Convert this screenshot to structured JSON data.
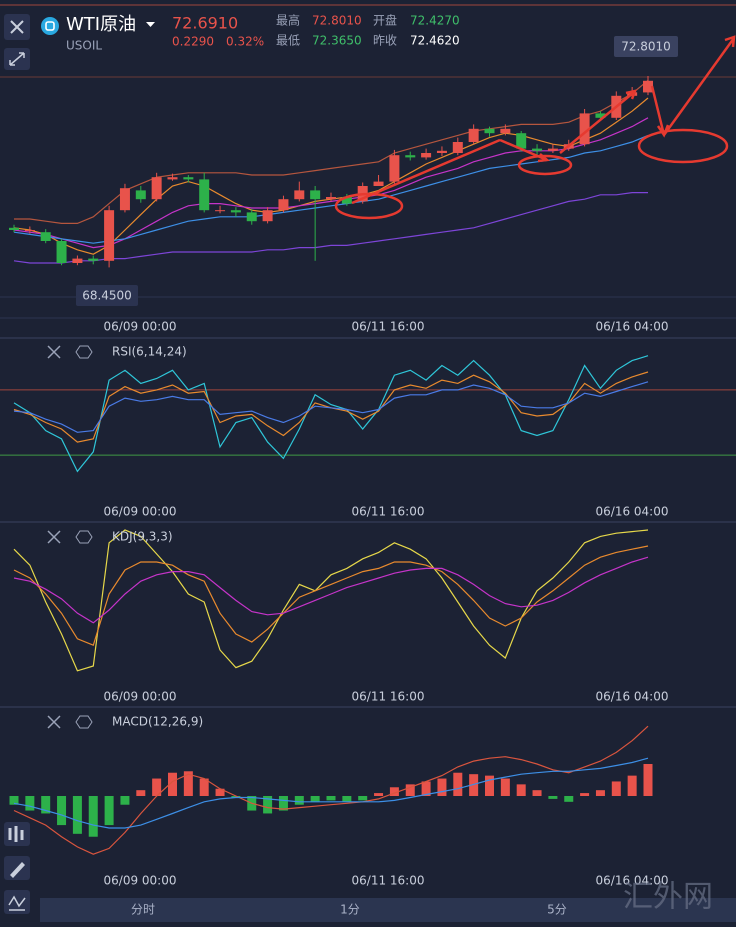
{
  "header": {
    "symbol": "WTI原油",
    "code": "USOIL",
    "price": "72.6910",
    "change": "0.2290",
    "change_pct": "0.32%",
    "high_label": "最高",
    "high": "72.8010",
    "open_label": "开盘",
    "open": "72.4270",
    "low_label": "最低",
    "low": "72.3650",
    "prev_label": "昨收",
    "prev": "72.4620"
  },
  "x_labels": [
    "06/09 00:00",
    "06/11 16:00",
    "06/16 04:00"
  ],
  "chart_data": [
    {
      "type": "candlestick",
      "ylim": [
        67.3,
        74.3
      ],
      "up_color": "#e8534b",
      "down_color": "#2db14a",
      "max_label": "72.8010",
      "min_label": "68.4500",
      "open": [
        69.35,
        69.3,
        69.25,
        69.05,
        68.55,
        68.65,
        68.6,
        69.75,
        70.2,
        70.0,
        70.45,
        70.5,
        70.45,
        69.75,
        69.75,
        69.7,
        69.5,
        69.75,
        70.0,
        70.2,
        70.0,
        70.05,
        69.95,
        70.3,
        70.4,
        71.0,
        70.95,
        71.05,
        71.05,
        71.3,
        71.6,
        71.5,
        71.5,
        71.15,
        71.1,
        71.15,
        71.25,
        71.95,
        71.85,
        72.35,
        72.427
      ],
      "high": [
        69.42,
        69.38,
        69.32,
        69.1,
        68.72,
        68.72,
        69.85,
        70.35,
        70.3,
        70.6,
        70.58,
        70.55,
        70.6,
        69.85,
        69.82,
        69.78,
        69.82,
        70.08,
        70.4,
        70.3,
        70.15,
        70.12,
        70.38,
        70.55,
        71.12,
        71.08,
        71.15,
        71.2,
        71.4,
        71.7,
        71.65,
        71.7,
        71.55,
        71.25,
        71.25,
        71.35,
        72.05,
        72.0,
        72.45,
        72.55,
        72.801
      ],
      "low": [
        69.25,
        69.22,
        69.0,
        68.5,
        68.5,
        68.52,
        68.45,
        69.7,
        69.92,
        69.95,
        70.42,
        70.38,
        69.7,
        69.68,
        69.6,
        69.42,
        69.45,
        69.7,
        69.95,
        68.6,
        69.95,
        69.85,
        69.9,
        70.3,
        70.35,
        70.88,
        70.9,
        70.98,
        71.0,
        71.25,
        71.42,
        71.45,
        71.08,
        71.0,
        71.05,
        71.1,
        71.2,
        71.78,
        71.8,
        72.3,
        72.365
      ],
      "close": [
        69.3,
        69.3,
        69.05,
        68.55,
        68.65,
        68.6,
        69.75,
        70.25,
        70.0,
        70.5,
        70.5,
        70.45,
        69.75,
        69.75,
        69.7,
        69.5,
        69.75,
        70.0,
        70.2,
        70.0,
        70.05,
        69.9,
        70.3,
        70.4,
        71.0,
        70.95,
        71.05,
        71.1,
        71.3,
        71.6,
        71.5,
        71.6,
        71.15,
        71.1,
        71.15,
        71.25,
        71.95,
        71.85,
        72.35,
        72.43,
        72.691
      ],
      "series": [
        {
          "color": "#b5563e",
          "values": [
            69.55,
            69.55,
            69.5,
            69.45,
            69.45,
            69.6,
            69.9,
            70.2,
            70.35,
            70.5,
            70.55,
            70.6,
            70.6,
            70.6,
            70.6,
            70.55,
            70.55,
            70.55,
            70.6,
            70.65,
            70.7,
            70.75,
            70.8,
            70.85,
            71.05,
            71.15,
            71.25,
            71.35,
            71.45,
            71.55,
            71.6,
            71.65,
            71.7,
            71.7,
            71.7,
            71.75,
            71.9,
            72.0,
            72.2,
            72.4,
            72.7
          ]
        },
        {
          "color": "#e88a2e",
          "values": [
            69.35,
            69.3,
            69.2,
            69.0,
            68.85,
            68.75,
            68.95,
            69.3,
            69.65,
            70.0,
            70.3,
            70.4,
            70.3,
            70.1,
            69.9,
            69.75,
            69.7,
            69.75,
            69.85,
            69.95,
            70.0,
            70.05,
            70.1,
            70.2,
            70.4,
            70.6,
            70.8,
            70.95,
            71.1,
            71.25,
            71.4,
            71.5,
            71.45,
            71.35,
            71.25,
            71.2,
            71.35,
            71.5,
            71.75,
            72.0,
            72.3
          ]
        },
        {
          "color": "#c534c9",
          "values": [
            69.3,
            69.25,
            69.2,
            69.1,
            69.0,
            68.9,
            68.95,
            69.1,
            69.3,
            69.5,
            69.7,
            69.85,
            69.9,
            69.9,
            69.85,
            69.8,
            69.8,
            69.8,
            69.85,
            69.9,
            69.95,
            70.0,
            70.05,
            70.1,
            70.2,
            70.35,
            70.5,
            70.6,
            70.7,
            70.85,
            70.95,
            71.05,
            71.1,
            71.1,
            71.1,
            71.15,
            71.25,
            71.35,
            71.5,
            71.65,
            71.85
          ]
        },
        {
          "color": "#3d8fe6",
          "values": [
            69.25,
            69.2,
            69.15,
            69.1,
            69.05,
            69.0,
            69.05,
            69.1,
            69.2,
            69.3,
            69.4,
            69.5,
            69.55,
            69.6,
            69.6,
            69.6,
            69.65,
            69.7,
            69.75,
            69.8,
            69.85,
            69.9,
            69.95,
            70.0,
            70.1,
            70.2,
            70.3,
            70.4,
            70.5,
            70.6,
            70.7,
            70.75,
            70.8,
            70.85,
            70.9,
            70.95,
            71.05,
            71.1,
            71.2,
            71.3,
            71.45
          ]
        },
        {
          "color": "#7d45d8",
          "values": [
            68.6,
            68.55,
            68.55,
            68.55,
            68.6,
            68.6,
            68.65,
            68.65,
            68.7,
            68.75,
            68.8,
            68.8,
            68.8,
            68.8,
            68.8,
            68.8,
            68.85,
            68.85,
            68.9,
            68.9,
            68.95,
            68.95,
            69.0,
            69.05,
            69.1,
            69.15,
            69.2,
            69.25,
            69.3,
            69.35,
            69.45,
            69.55,
            69.65,
            69.75,
            69.85,
            69.95,
            70.0,
            70.1,
            70.1,
            70.15,
            70.15
          ]
        }
      ]
    },
    {
      "type": "line",
      "title": "RSI(6,14,24)",
      "ylim": [
        0,
        100
      ],
      "levels": [
        70,
        30
      ],
      "level_colors": [
        "#a0463c",
        "#3f9a43"
      ],
      "series": [
        {
          "color": "#2fc6d8",
          "values": [
            62,
            56,
            45,
            40,
            20,
            32,
            76,
            82,
            74,
            77,
            82,
            70,
            74,
            35,
            50,
            53,
            38,
            28,
            46,
            67,
            61,
            58,
            46,
            58,
            79,
            82,
            76,
            85,
            79,
            88,
            79,
            67,
            45,
            42,
            45,
            64,
            85,
            71,
            82,
            88,
            91
          ]
        },
        {
          "color": "#e88a2e",
          "values": [
            58,
            55,
            50,
            46,
            38,
            40,
            66,
            72,
            68,
            70,
            73,
            68,
            69,
            50,
            54,
            55,
            48,
            42,
            50,
            62,
            59,
            57,
            52,
            57,
            70,
            73,
            71,
            76,
            74,
            79,
            75,
            68,
            56,
            54,
            55,
            62,
            74,
            68,
            74,
            78,
            81
          ]
        },
        {
          "color": "#4a7be6",
          "values": [
            57,
            56,
            52,
            49,
            44,
            45,
            60,
            65,
            63,
            64,
            66,
            64,
            64,
            55,
            56,
            57,
            53,
            50,
            54,
            60,
            59,
            58,
            56,
            58,
            65,
            67,
            67,
            70,
            70,
            73,
            71,
            67,
            60,
            59,
            59,
            62,
            68,
            66,
            69,
            72,
            75
          ]
        }
      ]
    },
    {
      "type": "line",
      "title": "KDJ(9,3,3)",
      "ylim": [
        0,
        100
      ],
      "series": [
        {
          "color": "#e6d84a",
          "values": [
            88,
            78,
            55,
            35,
            12,
            15,
            92,
            100,
            96,
            85,
            74,
            60,
            55,
            25,
            14,
            18,
            32,
            50,
            66,
            62,
            72,
            76,
            82,
            86,
            92,
            88,
            82,
            70,
            55,
            40,
            28,
            20,
            45,
            62,
            70,
            80,
            92,
            96,
            98,
            99,
            100
          ]
        },
        {
          "color": "#e88a2e",
          "values": [
            75,
            70,
            60,
            48,
            32,
            28,
            60,
            75,
            80,
            80,
            78,
            72,
            68,
            48,
            35,
            30,
            38,
            48,
            58,
            62,
            66,
            70,
            74,
            76,
            80,
            80,
            78,
            74,
            66,
            56,
            45,
            40,
            45,
            55,
            62,
            70,
            78,
            83,
            86,
            88,
            90
          ]
        },
        {
          "color": "#c534c9",
          "values": [
            70,
            68,
            63,
            57,
            48,
            42,
            50,
            60,
            68,
            72,
            74,
            74,
            72,
            64,
            56,
            49,
            47,
            48,
            52,
            56,
            60,
            64,
            67,
            70,
            73,
            75,
            76,
            76,
            72,
            66,
            59,
            54,
            52,
            53,
            56,
            61,
            67,
            72,
            76,
            80,
            83
          ]
        }
      ]
    },
    {
      "type": "macd",
      "title": "MACD(12,26,9)",
      "ylim": [
        -0.55,
        0.55
      ],
      "up_color": "#e8534b",
      "down_color": "#2db14a",
      "values": [
        -0.06,
        -0.1,
        -0.12,
        -0.2,
        -0.26,
        -0.28,
        -0.2,
        -0.06,
        0.04,
        0.12,
        0.16,
        0.17,
        0.12,
        0.05,
        -0.01,
        -0.1,
        -0.12,
        -0.1,
        -0.06,
        -0.04,
        -0.03,
        -0.04,
        -0.03,
        0.02,
        0.06,
        0.08,
        0.1,
        0.12,
        0.16,
        0.15,
        0.14,
        0.12,
        0.08,
        0.04,
        -0.02,
        -0.04,
        0.02,
        0.04,
        0.1,
        0.14,
        0.22
      ],
      "series": [
        {
          "color": "#d9553e",
          "values": [
            -0.1,
            -0.15,
            -0.2,
            -0.28,
            -0.35,
            -0.4,
            -0.36,
            -0.25,
            -0.12,
            0.0,
            0.1,
            0.15,
            0.12,
            0.05,
            0.0,
            -0.05,
            -0.08,
            -0.09,
            -0.08,
            -0.07,
            -0.06,
            -0.05,
            -0.04,
            -0.02,
            0.02,
            0.06,
            0.1,
            0.14,
            0.2,
            0.24,
            0.26,
            0.27,
            0.25,
            0.22,
            0.18,
            0.16,
            0.2,
            0.24,
            0.3,
            0.38,
            0.48
          ]
        },
        {
          "color": "#3d8fe6",
          "values": [
            -0.05,
            -0.07,
            -0.1,
            -0.13,
            -0.17,
            -0.2,
            -0.22,
            -0.22,
            -0.2,
            -0.16,
            -0.12,
            -0.08,
            -0.04,
            -0.02,
            -0.01,
            -0.01,
            -0.02,
            -0.03,
            -0.04,
            -0.04,
            -0.04,
            -0.04,
            -0.04,
            -0.04,
            -0.03,
            -0.01,
            0.01,
            0.03,
            0.05,
            0.08,
            0.11,
            0.13,
            0.15,
            0.16,
            0.17,
            0.17,
            0.18,
            0.19,
            0.21,
            0.23,
            0.26
          ]
        }
      ]
    }
  ],
  "toolbar": {
    "tabs": [
      "分时",
      "1分",
      "5分"
    ]
  },
  "watermark": "汇外网"
}
